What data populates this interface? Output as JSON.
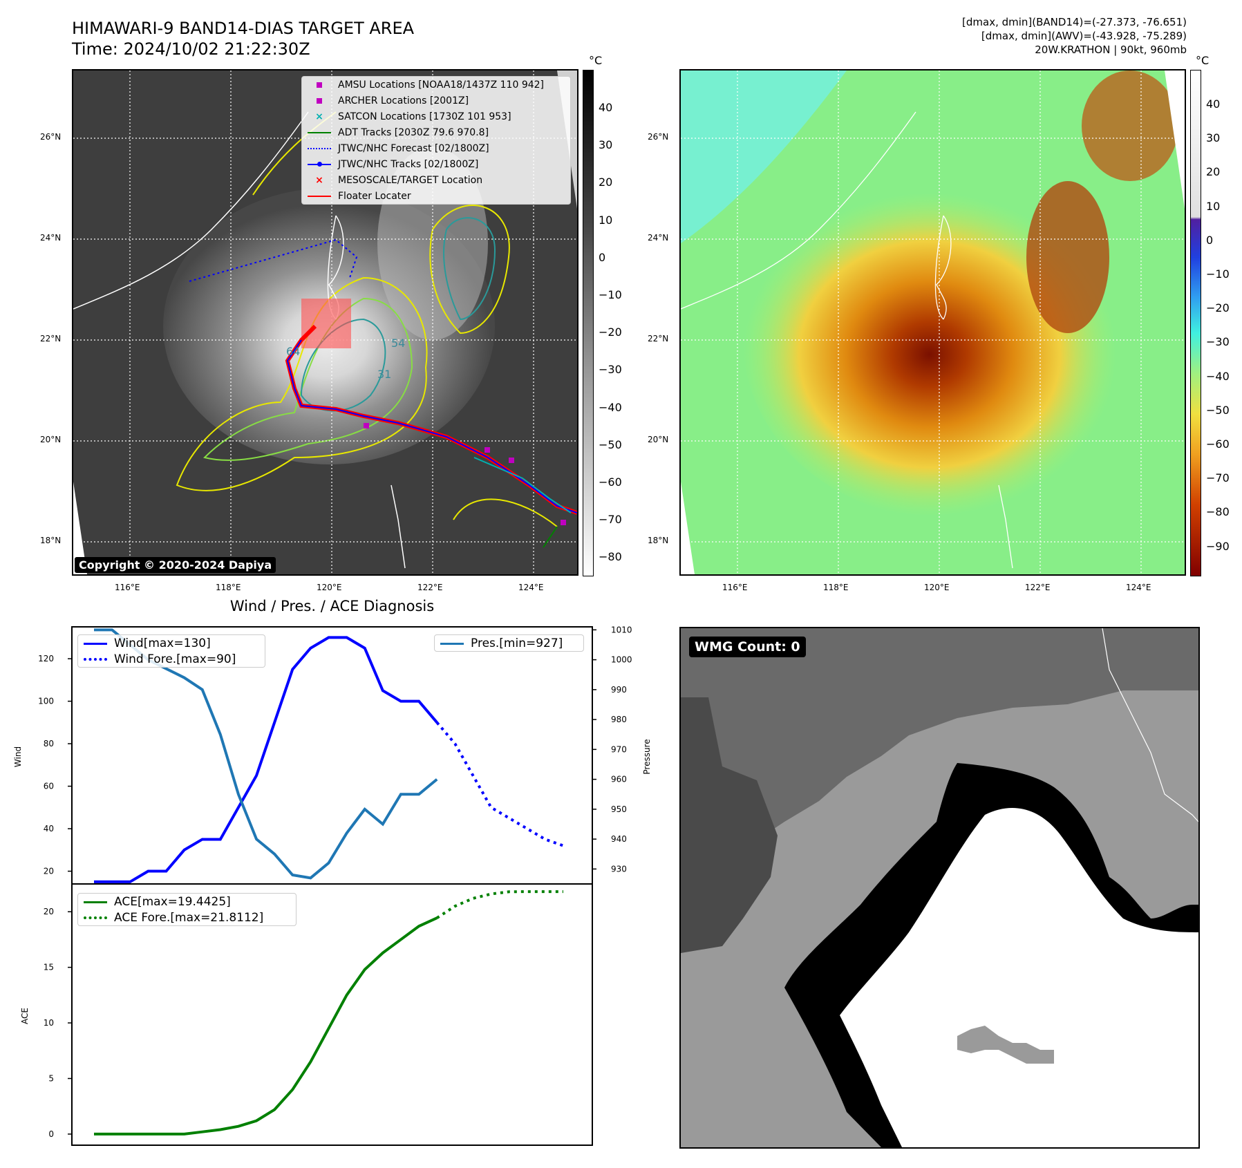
{
  "header": {
    "title_line1": "HIMAWARI-9 BAND14-DIAS TARGET AREA",
    "title_line2": "Time: 2024/10/02 21:22:30Z",
    "meta_line1": "[dmax, dmin](BAND14)=(-27.373, -76.651)",
    "meta_line2": "[dmax, dmin](AWV)=(-43.928, -75.289)",
    "meta_line3": "20W.KRATHON | 90kt, 960mb"
  },
  "map_axes": {
    "lat_labels": [
      "26°N",
      "24°N",
      "22°N",
      "20°N",
      "18°N"
    ],
    "lon_labels": [
      "116°E",
      "118°E",
      "120°E",
      "122°E",
      "124°E"
    ]
  },
  "ir_panel": {
    "copyright": "Copyright © 2020-2024 Dapiya",
    "contour_labels": [
      "31",
      "54",
      "64"
    ],
    "legend": [
      {
        "label": "AMSU Locations [NOAA18/1437Z 110 942]",
        "marker": "square",
        "color": "#c000c0"
      },
      {
        "label": "ARCHER Locations [2001Z]",
        "marker": "square",
        "color": "#c000c0"
      },
      {
        "label": "SATCON Locations [1730Z 101 953]",
        "marker": "x",
        "color": "#00b0b0"
      },
      {
        "label": "ADT Tracks [2030Z 79.6 970.8]",
        "marker": "line",
        "color": "#008000"
      },
      {
        "label": "JTWC/NHC Forecast [02/1800Z]",
        "marker": "dotted",
        "color": "#0000ff"
      },
      {
        "label": "JTWC/NHC Tracks [02/1800Z]",
        "marker": "line-dot",
        "color": "#0000ff"
      },
      {
        "label": "MESOSCALE/TARGET Location",
        "marker": "x",
        "color": "#ff0000"
      },
      {
        "label": "Floater Locater",
        "marker": "line",
        "color": "#ff0000"
      }
    ],
    "colorbar": {
      "unit": "°C",
      "ticks": [
        "40",
        "30",
        "20",
        "10",
        "0",
        "−10",
        "−20",
        "−30",
        "−40",
        "−50",
        "−60",
        "−70",
        "−80"
      ]
    }
  },
  "wv_panel": {
    "colorbar": {
      "unit": "°C",
      "ticks": [
        "40",
        "30",
        "20",
        "10",
        "0",
        "−10",
        "−20",
        "−30",
        "−40",
        "−50",
        "−60",
        "−70",
        "−80",
        "−90"
      ]
    }
  },
  "diag_title": "Wind / Pres. / ACE Diagnosis",
  "wmg_panel": {
    "label": "WMG Count: 0"
  },
  "chart_data": [
    {
      "type": "line",
      "title": "Wind / Pres. / ACE Diagnosis",
      "ylabel": "Wind",
      "y2label": "Pressure",
      "ylim": [
        14,
        135
      ],
      "y2lim": [
        925,
        1011
      ],
      "yticks": [
        "20",
        "40",
        "60",
        "80",
        "100",
        "120"
      ],
      "y2ticks": [
        "930",
        "940",
        "950",
        "960",
        "970",
        "980",
        "990",
        "1000",
        "1010"
      ],
      "series": [
        {
          "name": "Wind[max=130]",
          "axis": "left",
          "style": "solid",
          "color": "#0000ff",
          "x": [
            0,
            1,
            2,
            3,
            4,
            5,
            6,
            7,
            8,
            9,
            10,
            11,
            12,
            13,
            14,
            15,
            16,
            17,
            18,
            19
          ],
          "values": [
            15,
            15,
            15,
            20,
            20,
            30,
            35,
            35,
            50,
            65,
            90,
            115,
            125,
            130,
            130,
            125,
            105,
            100,
            100,
            90
          ]
        },
        {
          "name": "Wind Fore.[max=90]",
          "axis": "left",
          "style": "dotted",
          "color": "#0000ff",
          "x": [
            19,
            20,
            21,
            22,
            23,
            24,
            25,
            26
          ],
          "values": [
            90,
            80,
            65,
            50,
            45,
            40,
            35,
            32
          ]
        },
        {
          "name": "Pres.[min=927]",
          "axis": "right",
          "style": "solid",
          "color": "#1f77b4",
          "x": [
            0,
            1,
            2,
            3,
            4,
            5,
            6,
            7,
            8,
            9,
            10,
            11,
            12,
            13,
            14,
            15,
            16,
            17,
            18,
            19
          ],
          "values": [
            1010,
            1010,
            1005,
            1000,
            997,
            994,
            990,
            975,
            955,
            940,
            935,
            928,
            927,
            932,
            942,
            950,
            945,
            955,
            955,
            960
          ]
        }
      ]
    },
    {
      "type": "line",
      "ylabel": "ACE",
      "ylim": [
        -1,
        22.5
      ],
      "yticks": [
        "0",
        "5",
        "10",
        "15",
        "20"
      ],
      "series": [
        {
          "name": "ACE[max=19.4425]",
          "style": "solid",
          "color": "#008000",
          "x": [
            0,
            1,
            2,
            3,
            4,
            5,
            6,
            7,
            8,
            9,
            10,
            11,
            12,
            13,
            14,
            15,
            16,
            17,
            18,
            19
          ],
          "values": [
            0,
            0,
            0,
            0,
            0,
            0,
            0.2,
            0.4,
            0.7,
            1.2,
            2.2,
            4.0,
            6.5,
            9.5,
            12.5,
            14.8,
            16.3,
            17.5,
            18.7,
            19.44
          ]
        },
        {
          "name": "ACE Fore.[max=21.8112]",
          "style": "dotted",
          "color": "#008000",
          "x": [
            19,
            20,
            21,
            22,
            23,
            24,
            25,
            26
          ],
          "values": [
            19.44,
            20.5,
            21.2,
            21.6,
            21.8,
            21.81,
            21.81,
            21.81
          ]
        }
      ]
    }
  ]
}
